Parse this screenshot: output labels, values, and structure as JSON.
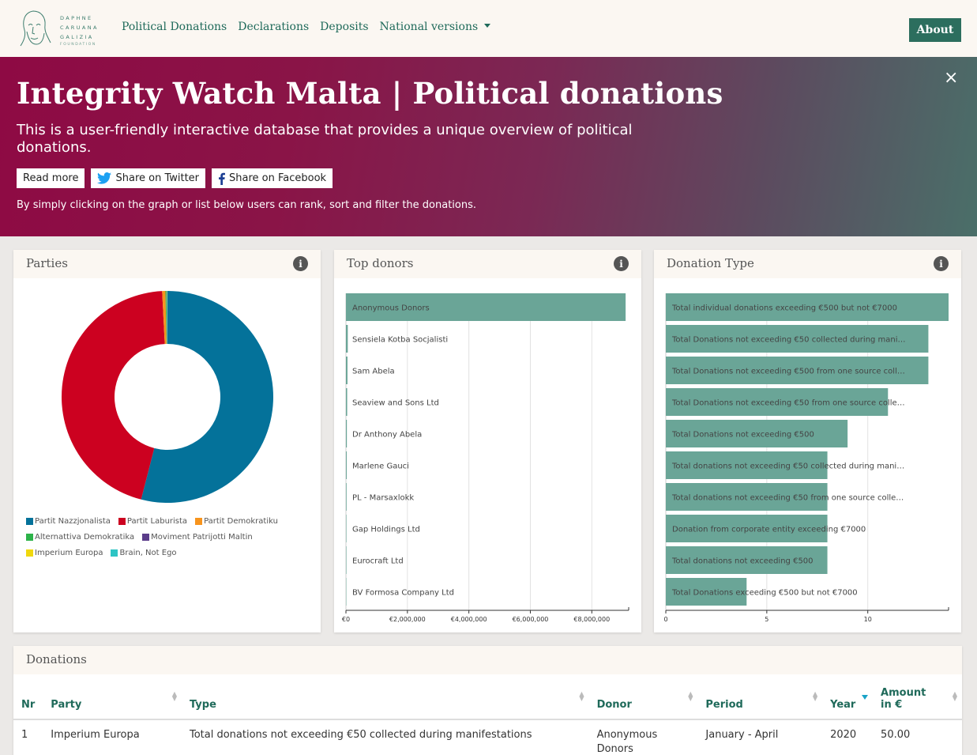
{
  "nav": {
    "logo_lines": [
      "DAPHNE",
      "CARUANA",
      "GALIZIA",
      "FOUNDATION"
    ],
    "items": [
      "Political Donations",
      "Declarations",
      "Deposits",
      "National versions"
    ],
    "about": "About"
  },
  "hero": {
    "title": "Integrity Watch Malta | Political donations",
    "description": "This is a user-friendly interactive database that provides a unique overview of political donations.",
    "read_more": "Read more",
    "share_twitter": "Share on Twitter",
    "share_facebook": "Share on Facebook",
    "subtitle": "By simply clicking on the graph or list below users can rank, sort and filter the donations.",
    "close": "×"
  },
  "panels": {
    "parties": "Parties",
    "top_donors": "Top donors",
    "donation_type": "Donation Type",
    "info": "i"
  },
  "colors": {
    "accent": "#2c6e5e",
    "bar": "#6aa597",
    "pn": "#04729a",
    "pl": "#cc0120",
    "pd": "#f7941d",
    "ad": "#2db34a",
    "mpm": "#5b3d8a",
    "ie": "#f0d80e",
    "bne": "#2ec4c4"
  },
  "chart_data": [
    {
      "type": "pie",
      "title": "Parties",
      "donut": true,
      "categories": [
        "Partit Nazzjonalista",
        "Partit Laburista",
        "Partit Demokratiku",
        "Alternattiva Demokratika",
        "Moviment Patrijotti Maltin",
        "Imperium Europa",
        "Brain, Not Ego"
      ],
      "values": [
        54.0,
        45.2,
        0.5,
        0.15,
        0.05,
        0.05,
        0.05
      ],
      "legend": "bottom"
    },
    {
      "type": "bar",
      "orientation": "horizontal",
      "title": "Top donors",
      "categories": [
        "Anonymous Donors",
        "Sensiela Kotba Socjalisti",
        "Sam Abela",
        "Seaview and Sons Ltd",
        "Dr Anthony Abela",
        "Marlene Gauci",
        "PL - Marsaxlokk",
        "Gap Holdings Ltd",
        "Eurocraft Ltd",
        "BV Formosa Company Ltd"
      ],
      "values": [
        9100000,
        60000,
        50000,
        40000,
        30000,
        25000,
        20000,
        15000,
        15000,
        12000
      ],
      "ticks": [
        "€0",
        "€2,000,000",
        "€4,000,000",
        "€6,000,000",
        "€8,000,000"
      ],
      "xlim": [
        0,
        9200000
      ],
      "grid": true
    },
    {
      "type": "bar",
      "orientation": "horizontal",
      "title": "Donation Type",
      "categories": [
        "Total individual donations exceeding €500 but not €7000",
        "Total Donations not exceeding €50 collected during mani…",
        "Total Donations not exceeding €500 from one source coll…",
        "Total Donations not exceeding €50 from one source colle…",
        "Total Donations not exceeding €500",
        "Total donations not exceeding €50 collected during mani…",
        "Total donations not exceeding €50 from one source colle…",
        "Donation from corporate entity exceeding €7000",
        "Total donations not exceeding €500",
        "Total Donations exceeding €500 but not €7000"
      ],
      "values": [
        14,
        13,
        13,
        11,
        9,
        8,
        8,
        8,
        8,
        4
      ],
      "ticks": [
        "0",
        "5",
        "10"
      ],
      "xlim": [
        0,
        14
      ],
      "grid": true
    }
  ],
  "table": {
    "title": "Donations",
    "headers": [
      "Nr",
      "Party",
      "Type",
      "Donor",
      "Period",
      "Year",
      "Amount in €"
    ],
    "rows": [
      [
        "1",
        "Imperium Europa",
        "Total donations not exceeding €50 collected during manifestations",
        "Anonymous Donors",
        "January - April",
        "2020",
        "50.00"
      ]
    ]
  }
}
